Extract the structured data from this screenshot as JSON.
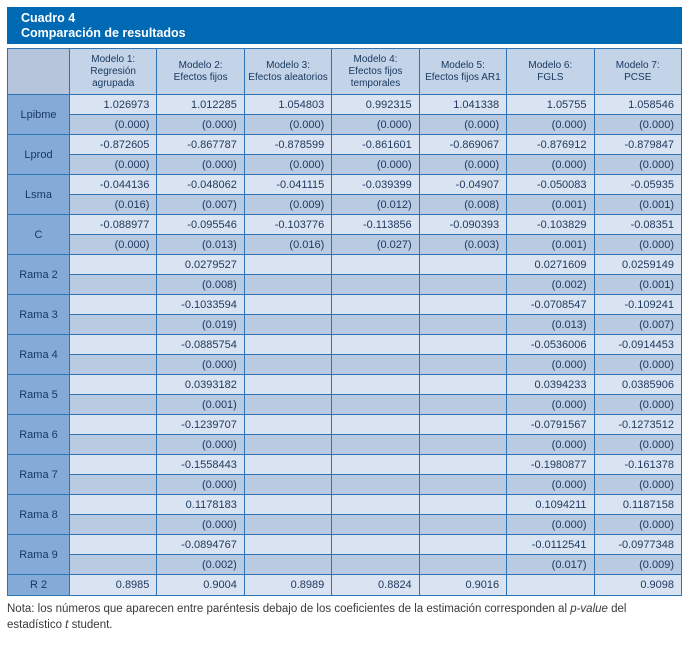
{
  "title": {
    "line1": "Cuadro 4",
    "line2": "Comparación de resultados"
  },
  "table": {
    "columns": [
      {
        "line1": "Modelo 1:",
        "line2": "Regresión agrupada"
      },
      {
        "line1": "Modelo 2:",
        "line2": "Efectos fijos"
      },
      {
        "line1": "Modelo 3:",
        "line2": "Efectos aleatorios"
      },
      {
        "line1": "Modelo 4:",
        "line2": "Efectos fijos temporales"
      },
      {
        "line1": "Modelo 5:",
        "line2": "Efectos fijos AR1"
      },
      {
        "line1": "Modelo 6:",
        "line2": "FGLS"
      },
      {
        "line1": "Modelo 7:",
        "line2": "PCSE"
      }
    ],
    "rows": [
      {
        "label": "Lpibme",
        "coef": [
          "1.026973",
          "1.012285",
          "1.054803",
          "0.992315",
          "1.041338",
          "1.05755",
          "1.058546"
        ],
        "pval": [
          "(0.000)",
          "(0.000)",
          "(0.000)",
          "(0.000)",
          "(0.000)",
          "(0.000)",
          "(0.000)"
        ]
      },
      {
        "label": "Lprod",
        "coef": [
          "-0.872605",
          "-0.867787",
          "-0.878599",
          "-0.861601",
          "-0.869067",
          "-0.876912",
          "-0.879847"
        ],
        "pval": [
          "(0.000)",
          "(0.000)",
          "(0.000)",
          "(0.000)",
          "(0.000)",
          "(0.000)",
          "(0.000)"
        ]
      },
      {
        "label": "Lsma",
        "coef": [
          "-0.044136",
          "-0.048062",
          "-0.041115",
          "-0.039399",
          "-0.04907",
          "-0.050083",
          "-0.05935"
        ],
        "pval": [
          "(0.016)",
          "(0.007)",
          "(0.009)",
          "(0.012)",
          "(0.008)",
          "(0.001)",
          "(0.001)"
        ]
      },
      {
        "label": "C",
        "coef": [
          "-0.088977",
          "-0.095546",
          "-0.103776",
          "-0.113856",
          "-0.090393",
          "-0.103829",
          "-0.08351"
        ],
        "pval": [
          "(0.000)",
          "(0.013)",
          "(0.016)",
          "(0.027)",
          "(0.003)",
          "(0.001)",
          "(0.000)"
        ]
      },
      {
        "label": "Rama 2",
        "coef": [
          "",
          "0.0279527",
          "",
          "",
          "",
          "0.0271609",
          "0.0259149"
        ],
        "pval": [
          "",
          "(0.008)",
          "",
          "",
          "",
          "(0.002)",
          "(0.001)"
        ]
      },
      {
        "label": "Rama 3",
        "coef": [
          "",
          "-0.1033594",
          "",
          "",
          "",
          "-0.0708547",
          "-0.109241"
        ],
        "pval": [
          "",
          "(0.019)",
          "",
          "",
          "",
          "(0.013)",
          "(0.007)"
        ]
      },
      {
        "label": "Rama 4",
        "coef": [
          "",
          "-0.0885754",
          "",
          "",
          "",
          "-0.0536006",
          "-0.0914453"
        ],
        "pval": [
          "",
          "(0.000)",
          "",
          "",
          "",
          "(0.000)",
          "(0.000)"
        ]
      },
      {
        "label": "Rama 5",
        "coef": [
          "",
          "0.0393182",
          "",
          "",
          "",
          "0.0394233",
          "0.0385906"
        ],
        "pval": [
          "",
          "(0.001)",
          "",
          "",
          "",
          "(0.000)",
          "(0.000)"
        ]
      },
      {
        "label": "Rama 6",
        "coef": [
          "",
          "-0.1239707",
          "",
          "",
          "",
          "-0.0791567",
          "-0.1273512"
        ],
        "pval": [
          "",
          "(0.000)",
          "",
          "",
          "",
          "(0.000)",
          "(0.000)"
        ]
      },
      {
        "label": "Rama 7",
        "coef": [
          "",
          "-0.1558443",
          "",
          "",
          "",
          "-0.1980877",
          "-0.161378"
        ],
        "pval": [
          "",
          "(0.000)",
          "",
          "",
          "",
          "(0.000)",
          "(0.000)"
        ]
      },
      {
        "label": "Rama 8",
        "coef": [
          "",
          "0.1178183",
          "",
          "",
          "",
          "0.1094211",
          "0.1187158"
        ],
        "pval": [
          "",
          "(0.000)",
          "",
          "",
          "",
          "(0.000)",
          "(0.000)"
        ]
      },
      {
        "label": "Rama 9",
        "coef": [
          "",
          "-0.0894767",
          "",
          "",
          "",
          "-0.0112541",
          "-0.0977348"
        ],
        "pval": [
          "",
          "(0.002)",
          "",
          "",
          "",
          "(0.017)",
          "(0.009)"
        ]
      }
    ],
    "r2_row": {
      "label": "R 2",
      "values": [
        "0.8985",
        "0.9004",
        "0.8989",
        "0.8824",
        "0.9016",
        "",
        "0.9098"
      ]
    }
  },
  "note": {
    "part1": "Nota: los números que aparecen entre paréntesis debajo de los coeficientes de la estimación corresponden al ",
    "italic1": "p-value",
    "part2": " del estadístico ",
    "italic2": "t",
    "part3": " student."
  },
  "colors": {
    "title_bar": "#0069b4",
    "border": "#2e74b5",
    "header_bg": "#c3d3e8",
    "corner_bg": "#b6c4dc",
    "label_bg": "#84abd8",
    "coef_bg": "#dae3f1",
    "pval_bg": "#b9cbe3",
    "header_text": "#17375e",
    "data_text": "#1f3a60",
    "note_text": "#3a3a3a"
  }
}
